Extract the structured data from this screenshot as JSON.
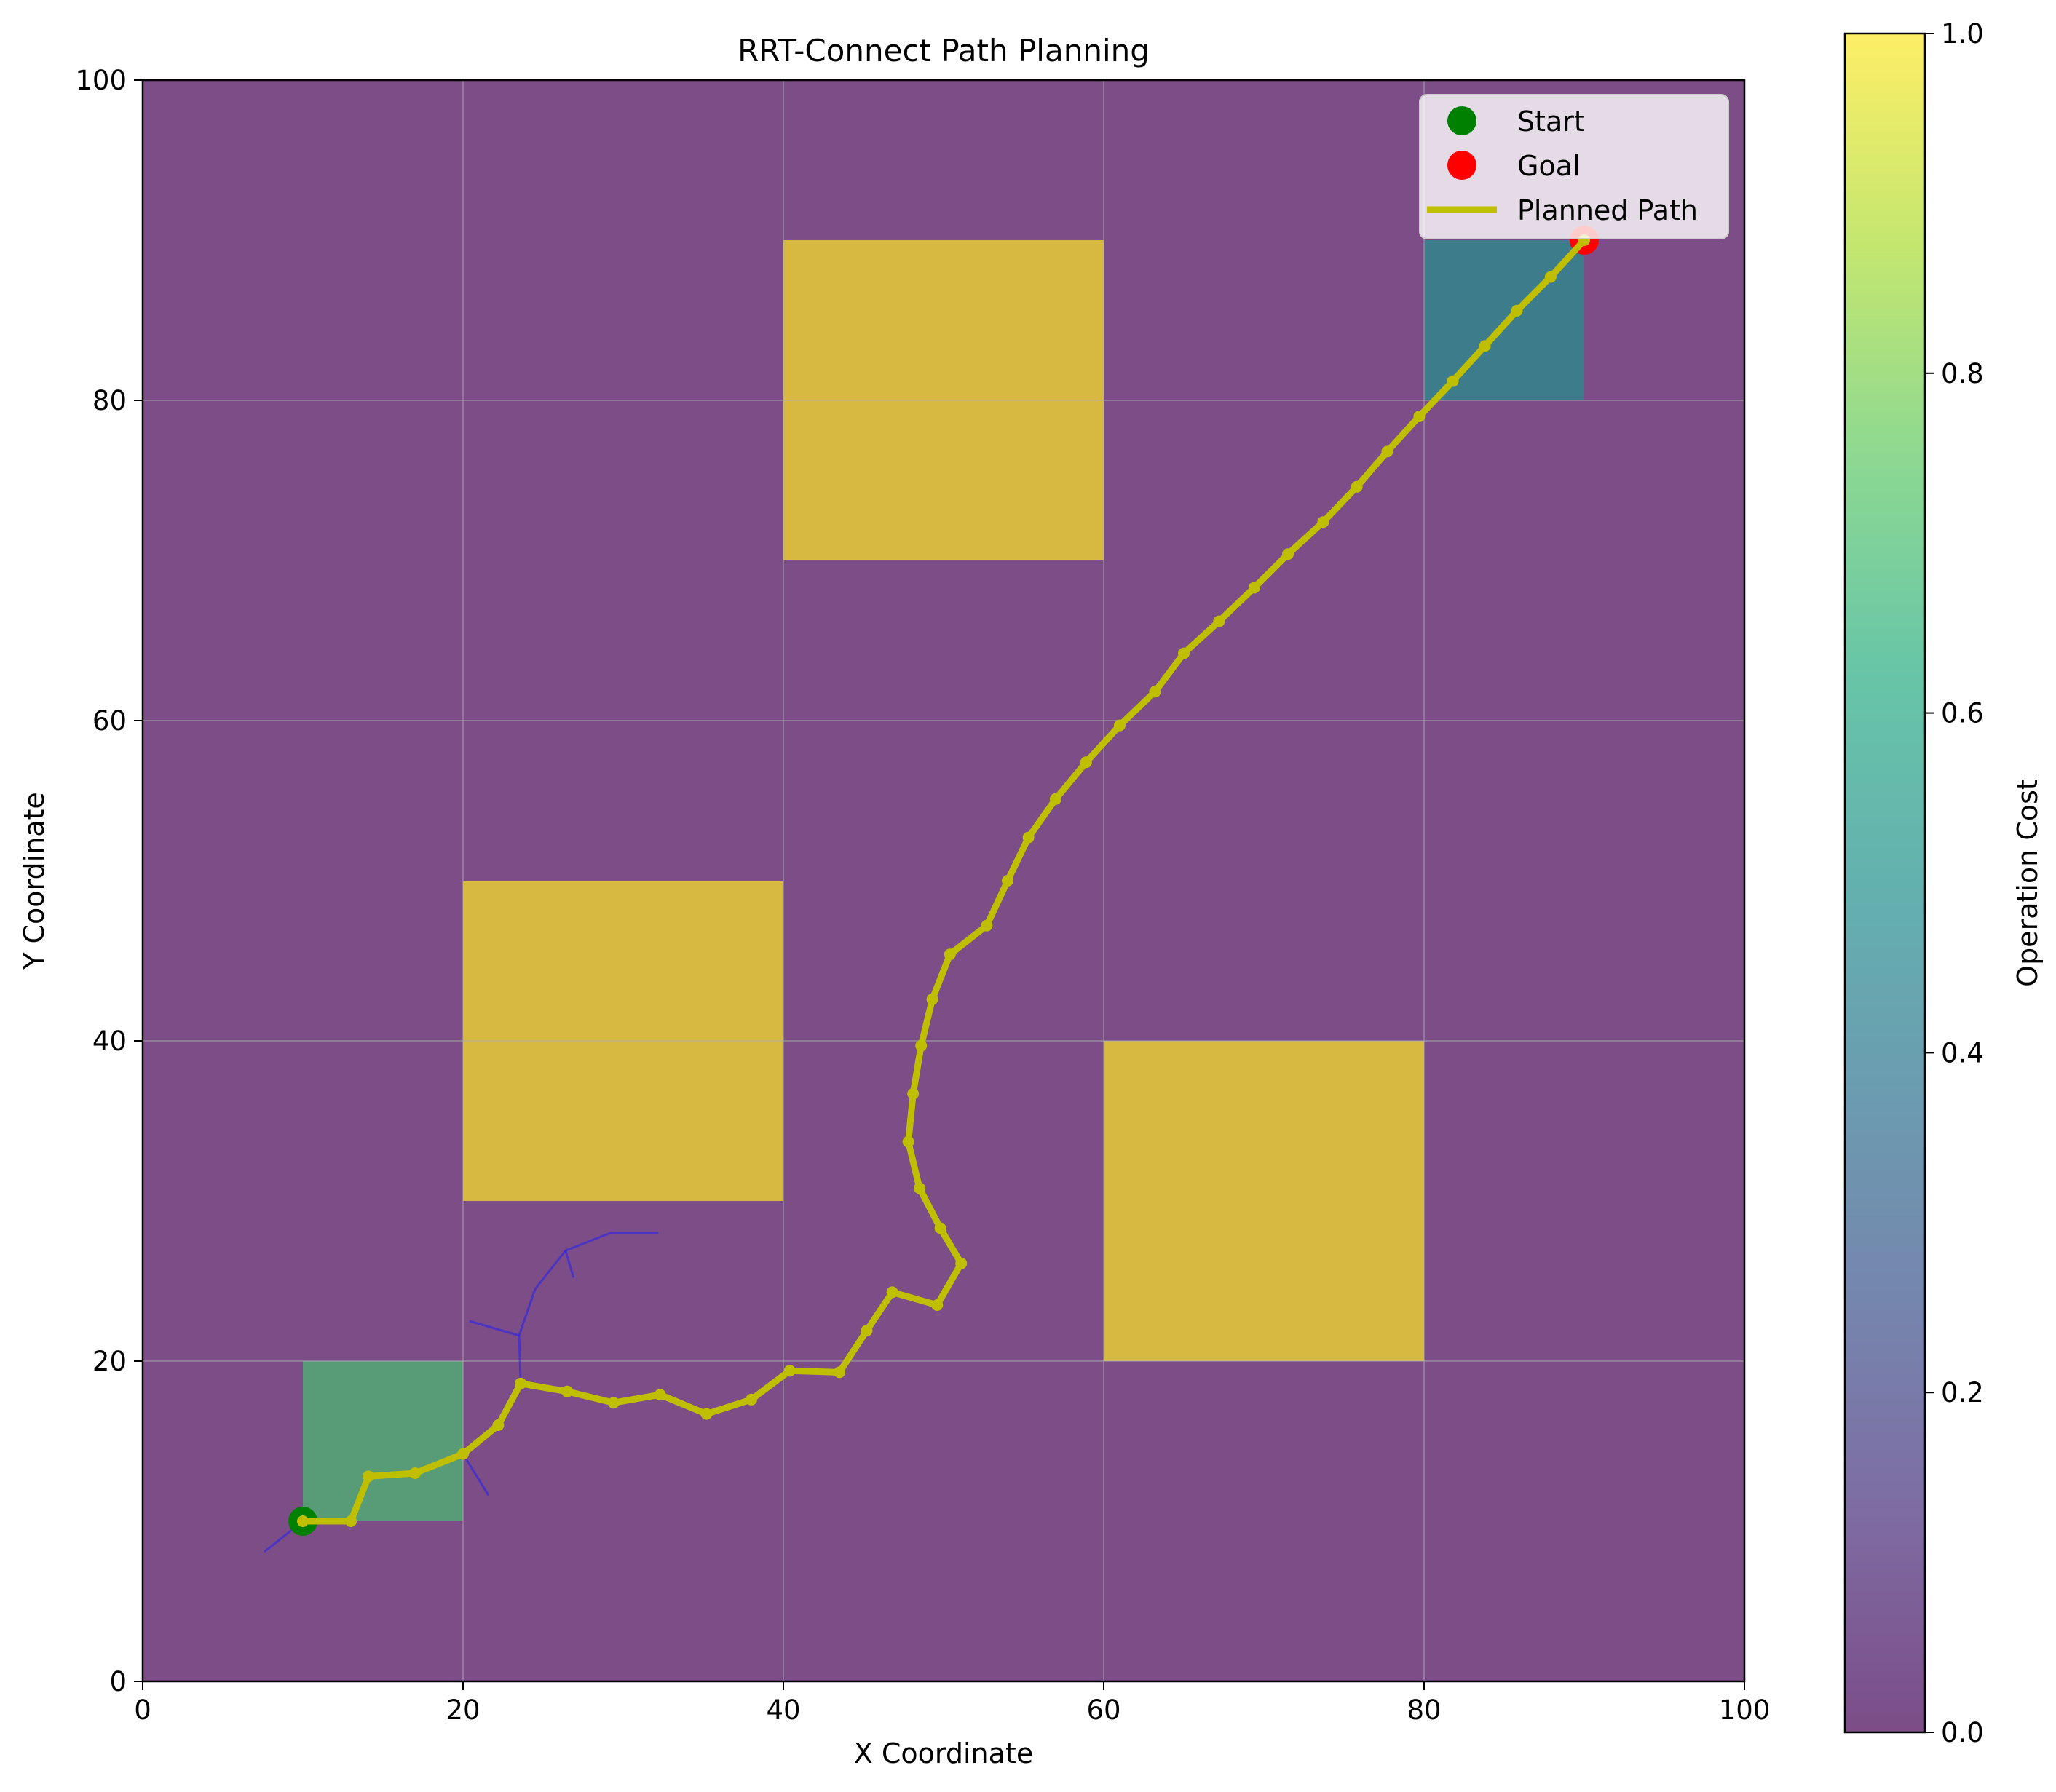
{
  "chart_data": {
    "type": "heatmap",
    "title": "RRT-Connect Path Planning",
    "xlabel": "X Coordinate",
    "ylabel": "Y Coordinate",
    "xlim": [
      0,
      100
    ],
    "ylim": [
      0,
      100
    ],
    "xticks": [
      "0",
      "20",
      "40",
      "60",
      "80",
      "100"
    ],
    "yticks": [
      "0",
      "20",
      "40",
      "60",
      "80",
      "100"
    ],
    "grid": true,
    "background_cost": 0.0,
    "cost_regions": [
      {
        "x": [
          40,
          60
        ],
        "y": [
          70,
          90
        ],
        "cost": 1.0
      },
      {
        "x": [
          20,
          40
        ],
        "y": [
          30,
          50
        ],
        "cost": 1.0
      },
      {
        "x": [
          60,
          80
        ],
        "y": [
          20,
          40
        ],
        "cost": 1.0
      },
      {
        "x": [
          10,
          20
        ],
        "y": [
          10,
          20
        ],
        "cost": 0.7
      },
      {
        "x": [
          80,
          90
        ],
        "y": [
          80,
          90
        ],
        "cost": 0.5
      }
    ],
    "colorbar": {
      "label": "Operation Cost",
      "range": [
        0,
        1
      ],
      "ticks": [
        "0.0",
        "0.2",
        "0.4",
        "0.6",
        "0.8",
        "1.0"
      ],
      "colormap": "viridis"
    },
    "start": {
      "name": "Start",
      "x": 10,
      "y": 10,
      "color": "#008000"
    },
    "goal": {
      "name": "Goal",
      "x": 90,
      "y": 90,
      "color": "#ff0000"
    },
    "path": {
      "name": "Planned Path",
      "color": "#bfbf00",
      "points": [
        [
          10,
          10
        ],
        [
          13,
          10
        ],
        [
          14.1,
          12.8
        ],
        [
          17,
          13
        ],
        [
          20,
          14.2
        ],
        [
          22.2,
          16
        ],
        [
          23.6,
          18.6
        ],
        [
          26.5,
          18.1
        ],
        [
          29.4,
          17.4
        ],
        [
          32.3,
          17.9
        ],
        [
          35.2,
          16.7
        ],
        [
          38,
          17.6
        ],
        [
          40.4,
          19.4
        ],
        [
          43.5,
          19.3
        ],
        [
          45.2,
          21.9
        ],
        [
          46.8,
          24.3
        ],
        [
          49.6,
          23.5
        ],
        [
          51.1,
          26.1
        ],
        [
          49.8,
          28.3
        ],
        [
          48.5,
          30.8
        ],
        [
          47.8,
          33.7
        ],
        [
          48.1,
          36.7
        ],
        [
          48.6,
          39.7
        ],
        [
          49.3,
          42.6
        ],
        [
          50.4,
          45.4
        ],
        [
          52.7,
          47.2
        ],
        [
          54,
          50
        ],
        [
          55.3,
          52.7
        ],
        [
          57,
          55.1
        ],
        [
          58.9,
          57.4
        ],
        [
          61,
          59.7
        ],
        [
          63.2,
          61.8
        ],
        [
          65,
          64.2
        ],
        [
          67.2,
          66.2
        ],
        [
          69.4,
          68.3
        ],
        [
          71.5,
          70.4
        ],
        [
          73.7,
          72.4
        ],
        [
          75.8,
          74.6
        ],
        [
          77.7,
          76.8
        ],
        [
          79.7,
          79
        ],
        [
          81.8,
          81.2
        ],
        [
          83.8,
          83.4
        ],
        [
          85.8,
          85.6
        ],
        [
          87.9,
          87.7
        ],
        [
          90,
          90
        ]
      ]
    },
    "tree": {
      "color": "#1a1aff",
      "segments": [
        [
          [
            10,
            10
          ],
          [
            7.6,
            8.1
          ]
        ],
        [
          [
            20,
            14.2
          ],
          [
            21.6,
            11.6
          ]
        ],
        [
          [
            23.6,
            18.6
          ],
          [
            23.5,
            21.6
          ]
        ],
        [
          [
            23.5,
            21.6
          ],
          [
            20.4,
            22.5
          ]
        ],
        [
          [
            23.5,
            21.6
          ],
          [
            24.5,
            24.5
          ]
        ],
        [
          [
            24.5,
            24.5
          ],
          [
            26.4,
            26.9
          ]
        ],
        [
          [
            26.4,
            26.9
          ],
          [
            26.9,
            25.2
          ]
        ],
        [
          [
            26.4,
            26.9
          ],
          [
            29.2,
            28.0
          ]
        ],
        [
          [
            29.2,
            28.0
          ],
          [
            32.2,
            28.0
          ]
        ]
      ]
    }
  }
}
